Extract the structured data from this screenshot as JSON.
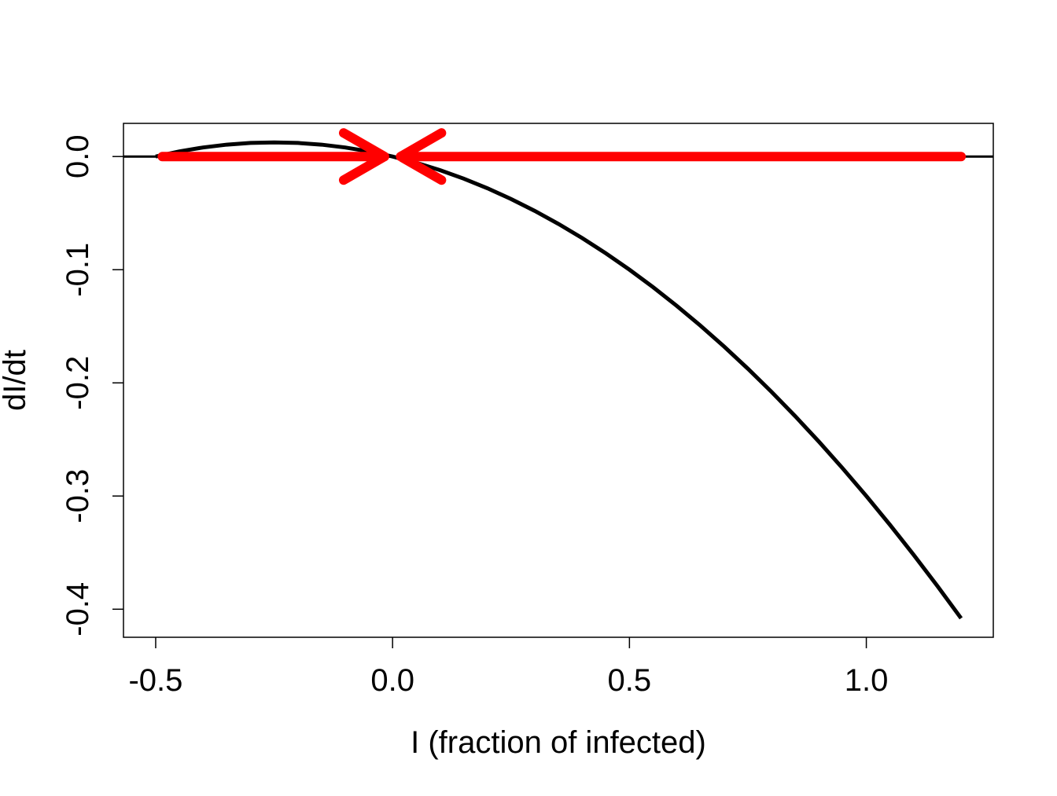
{
  "chart_data": {
    "type": "line",
    "xlabel": "I (fraction of infected)",
    "ylabel": "dI/dt",
    "xlim": [
      -0.568,
      1.268
    ],
    "ylim": [
      -0.4248,
      0.0293
    ],
    "xticks": [
      -0.5,
      {
        "value": 0,
        "label": "0.0"
      },
      0.5,
      {
        "value": 1,
        "label": "1.0"
      }
    ],
    "yticks": [
      {
        "value": 0,
        "label": "0.0"
      },
      -0.1,
      -0.2,
      -0.3,
      -0.4
    ],
    "hline": 0,
    "hline_color": "#000000",
    "series": [
      {
        "color": "#000000",
        "x": [
          -0.5,
          -0.45,
          -0.4,
          -0.35,
          -0.3,
          -0.25,
          -0.2,
          -0.15,
          -0.1,
          -0.05,
          0,
          0.05,
          0.1,
          0.15,
          0.2,
          0.25,
          0.3,
          0.35,
          0.4,
          0.45,
          0.5,
          0.55,
          0.6,
          0.65,
          0.7,
          0.75,
          0.8,
          0.85,
          0.9,
          0.95,
          1.0,
          1.05,
          1.1,
          1.15,
          1.2
        ],
        "values": [
          0,
          0.0045,
          0.008,
          0.0105,
          0.012,
          0.0125,
          0.012,
          0.0105,
          0.008,
          0.0045,
          0,
          -0.0055,
          -0.012,
          -0.0195,
          -0.028,
          -0.0375,
          -0.048,
          -0.0595,
          -0.072,
          -0.0855,
          -0.1,
          -0.1155,
          -0.132,
          -0.1495,
          -0.168,
          -0.1875,
          -0.208,
          -0.2295,
          -0.252,
          -0.2755,
          -0.3,
          -0.3255,
          -0.352,
          -0.3795,
          -0.408
        ]
      }
    ],
    "arrows": [
      {
        "x0": -0.486,
        "x1": -0.017,
        "y": 0
      },
      {
        "x0": 1.2,
        "x1": 0.017,
        "y": 0
      }
    ],
    "arrow_color": "#ff0000"
  }
}
